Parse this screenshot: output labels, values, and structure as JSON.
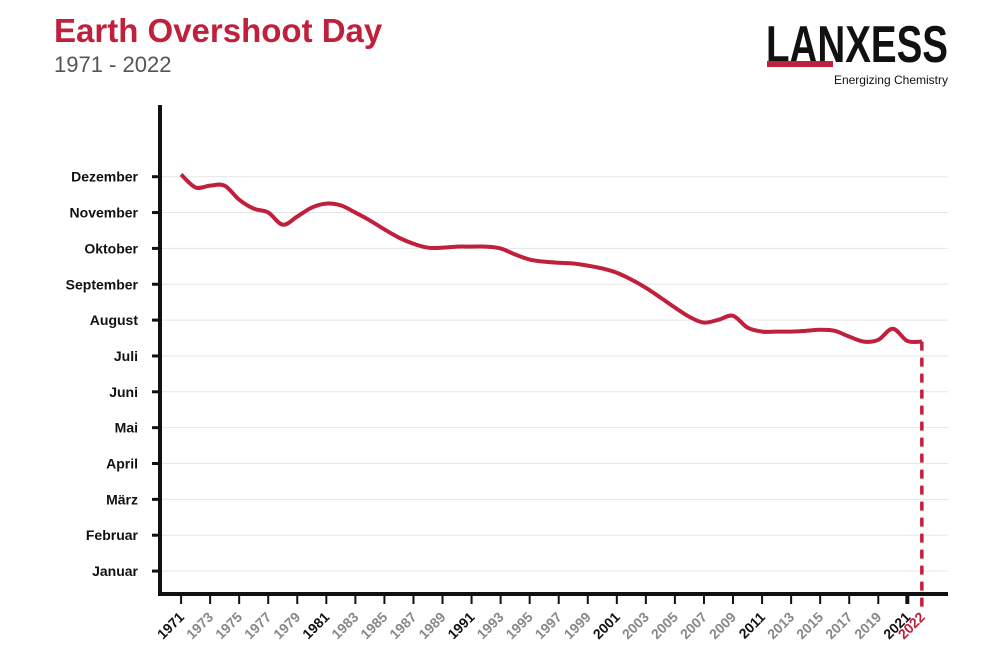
{
  "chart_data": {
    "type": "line",
    "title": "Earth Overshoot Day",
    "subtitle": "1971 - 2022",
    "x": [
      1971,
      1972,
      1973,
      1974,
      1975,
      1976,
      1977,
      1978,
      1979,
      1980,
      1981,
      1982,
      1983,
      1984,
      1985,
      1986,
      1987,
      1988,
      1989,
      1990,
      1991,
      1992,
      1993,
      1994,
      1995,
      1996,
      1997,
      1998,
      1999,
      2000,
      2001,
      2002,
      2003,
      2004,
      2005,
      2006,
      2007,
      2008,
      2009,
      2010,
      2011,
      2012,
      2013,
      2014,
      2015,
      2016,
      2017,
      2018,
      2019,
      2020,
      2021,
      2022
    ],
    "series": [
      {
        "color": "#c0203b",
        "values": [
          12.06,
          11.7,
          11.75,
          11.75,
          11.36,
          11.11,
          11.0,
          10.66,
          10.89,
          11.14,
          11.25,
          11.2,
          11.0,
          10.78,
          10.53,
          10.3,
          10.13,
          10.02,
          10.02,
          10.05,
          10.05,
          10.05,
          10.0,
          9.83,
          9.69,
          9.63,
          9.6,
          9.58,
          9.52,
          9.44,
          9.32,
          9.13,
          8.9,
          8.63,
          8.35,
          8.09,
          7.93,
          8.01,
          8.12,
          7.79,
          7.68,
          7.68,
          7.68,
          7.7,
          7.73,
          7.7,
          7.54,
          7.4,
          7.45,
          7.76,
          7.42,
          7.4
        ]
      }
    ],
    "xlim": [
      1969.55,
      2023.8
    ],
    "xticks": [
      1971,
      1973,
      1975,
      1977,
      1979,
      1981,
      1983,
      1985,
      1987,
      1989,
      1991,
      1993,
      1995,
      1997,
      1999,
      2001,
      2003,
      2005,
      2007,
      2009,
      2011,
      2013,
      2015,
      2017,
      2019,
      2021,
      2022
    ],
    "ylim": [
      0.36,
      14.0
    ],
    "yticks": [
      {
        "value": 1,
        "label": "Januar"
      },
      {
        "value": 2,
        "label": "Februar"
      },
      {
        "value": 3,
        "label": "März"
      },
      {
        "value": 4,
        "label": "April"
      },
      {
        "value": 5,
        "label": "Mai"
      },
      {
        "value": 6,
        "label": "Juni"
      },
      {
        "value": 7,
        "label": "Juli"
      },
      {
        "value": 8,
        "label": "August"
      },
      {
        "value": 9,
        "label": "September"
      },
      {
        "value": 10,
        "label": "Oktober"
      },
      {
        "value": 11,
        "label": "November"
      },
      {
        "value": 12,
        "label": "Dezember"
      }
    ],
    "grid": true
  },
  "logo": {
    "name": "LANXESS",
    "tagline": "Energizing Chemistry"
  }
}
